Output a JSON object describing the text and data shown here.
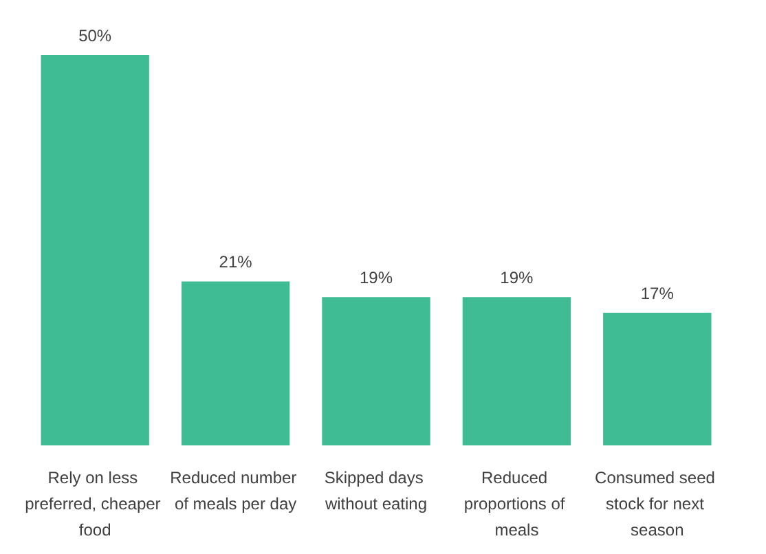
{
  "chart_data": {
    "type": "bar",
    "categories": [
      "Rely on less preferred, cheaper food",
      "Reduced number of meals per day",
      "Skipped days without eating",
      "Reduced proportions of meals",
      "Consumed seed stock for next season"
    ],
    "values": [
      50,
      21,
      19,
      19,
      17
    ],
    "value_labels": [
      "50%",
      "21%",
      "19%",
      "19%",
      "17%"
    ],
    "color": "#40bc94"
  }
}
